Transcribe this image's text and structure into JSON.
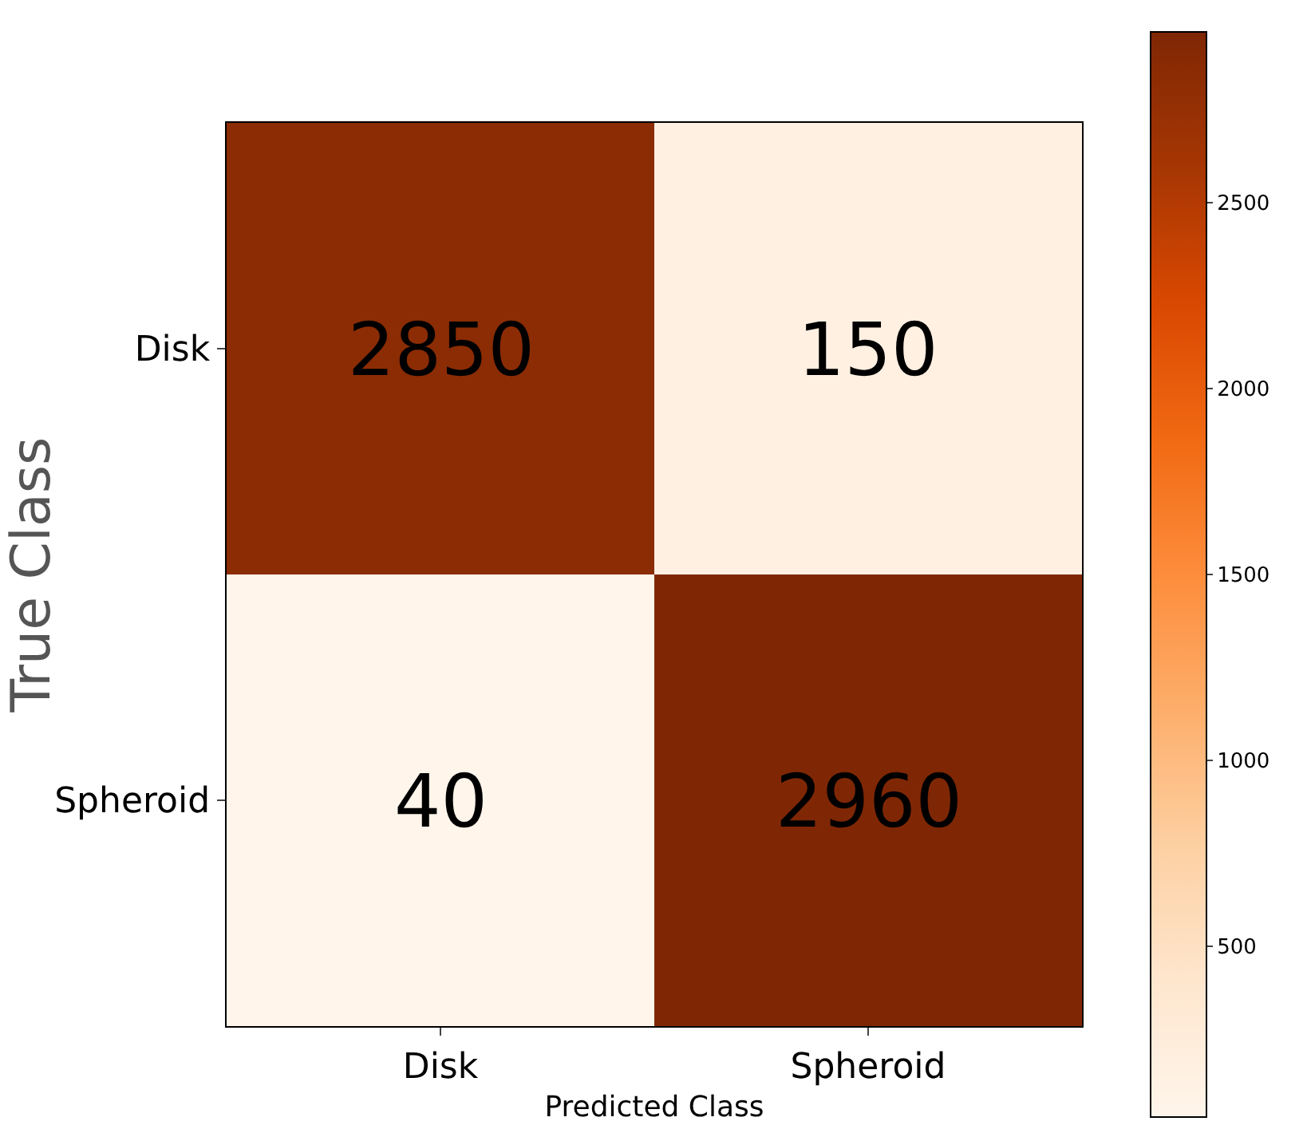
{
  "chart_data": {
    "type": "heatmap",
    "xlabel": "Predicted Class",
    "ylabel": "True Class",
    "categories": [
      "Disk",
      "Spheroid"
    ],
    "y_categories": [
      "Disk",
      "Spheroid"
    ],
    "cells": [
      [
        2850,
        150
      ],
      [
        40,
        2960
      ]
    ],
    "data_labels": true,
    "clim": [
      40,
      2960
    ],
    "cticks": [
      500,
      1000,
      1500,
      2000,
      2500
    ]
  }
}
